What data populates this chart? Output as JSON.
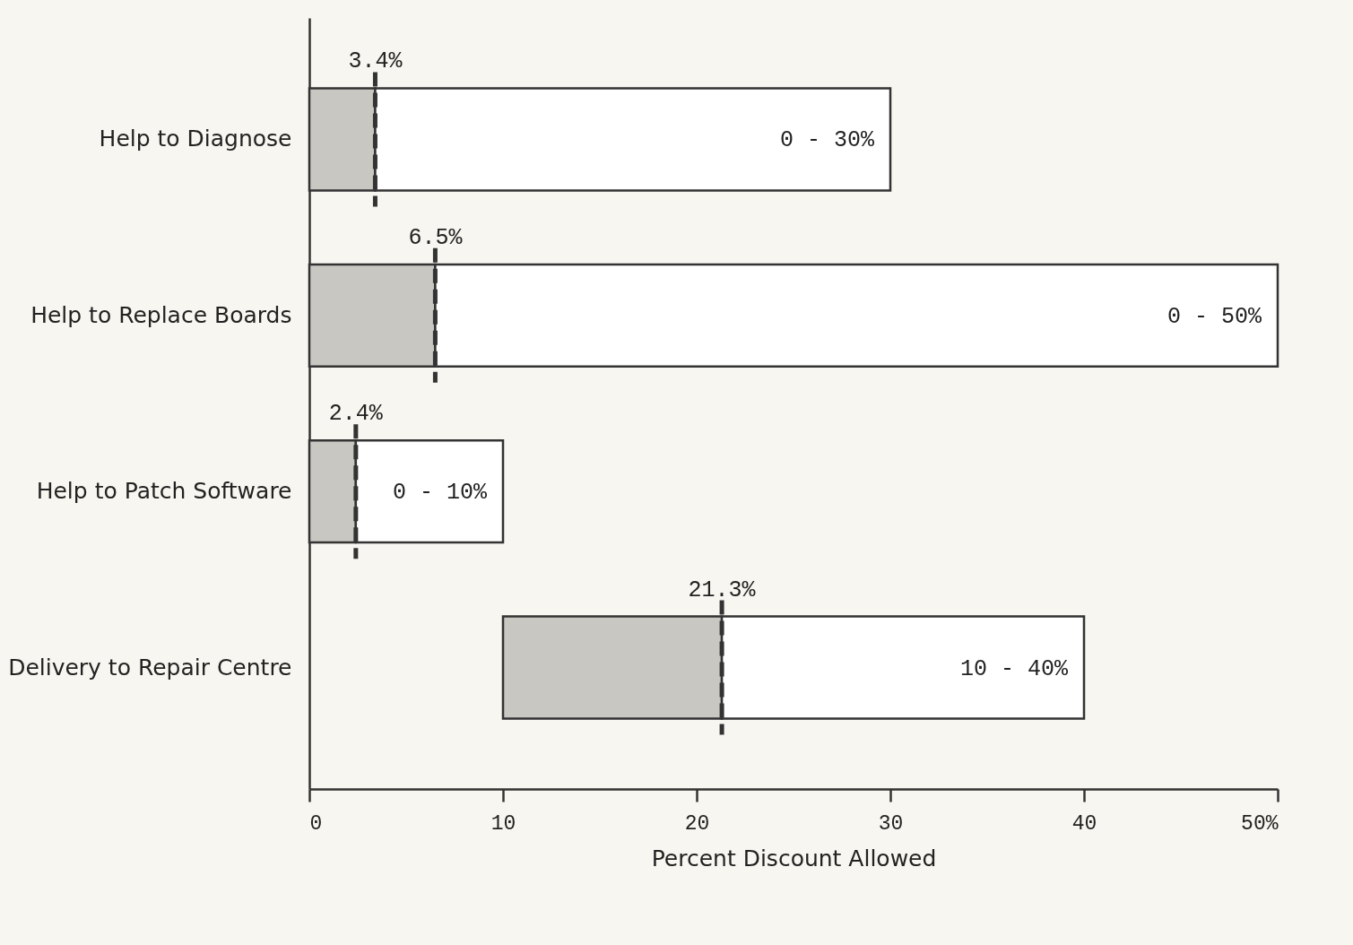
{
  "chart_data": {
    "type": "bar",
    "orientation": "horizontal",
    "xlabel": "Percent Discount Allowed",
    "categories": [
      "Help to Diagnose",
      "Help to Replace Boards",
      "Help to Patch Software",
      "Delivery to Repair Centre"
    ],
    "series": [
      {
        "color": "#c9c7c2",
        "base": [
          0,
          0,
          0,
          10
        ],
        "values": [
          3.4,
          6.5,
          2.4,
          11.3
        ]
      },
      {
        "color": "#ffffff",
        "base": [
          3.4,
          6.5,
          2.4,
          21.3
        ],
        "values": [
          26.6,
          43.5,
          7.6,
          18.7
        ]
      }
    ],
    "annotations": [
      {
        "text": "3.4%",
        "x": 3.4,
        "y": "Help to Diagnose"
      },
      {
        "text": "6.5%",
        "x": 6.5,
        "y": "Help to Replace Boards"
      },
      {
        "text": "2.4%",
        "x": 2.4,
        "y": "Help to Patch Software"
      },
      {
        "text": "21.3%",
        "x": 21.3,
        "y": "Delivery to Repair Centre"
      },
      {
        "text": "0 - 30%",
        "x": 30,
        "y": "Help to Diagnose"
      },
      {
        "text": "0 - 50%",
        "x": 50,
        "y": "Help to Replace Boards"
      },
      {
        "text": "0 - 10%",
        "x": 10,
        "y": "Help to Patch Software"
      },
      {
        "text": "10 - 40%",
        "x": 40,
        "y": "Delivery to Repair Centre"
      }
    ],
    "xlim": [
      0,
      50
    ],
    "xticks": [
      0,
      10,
      20,
      30,
      40,
      {
        "value": 50,
        "label": "50%"
      }
    ],
    "grid": false
  }
}
